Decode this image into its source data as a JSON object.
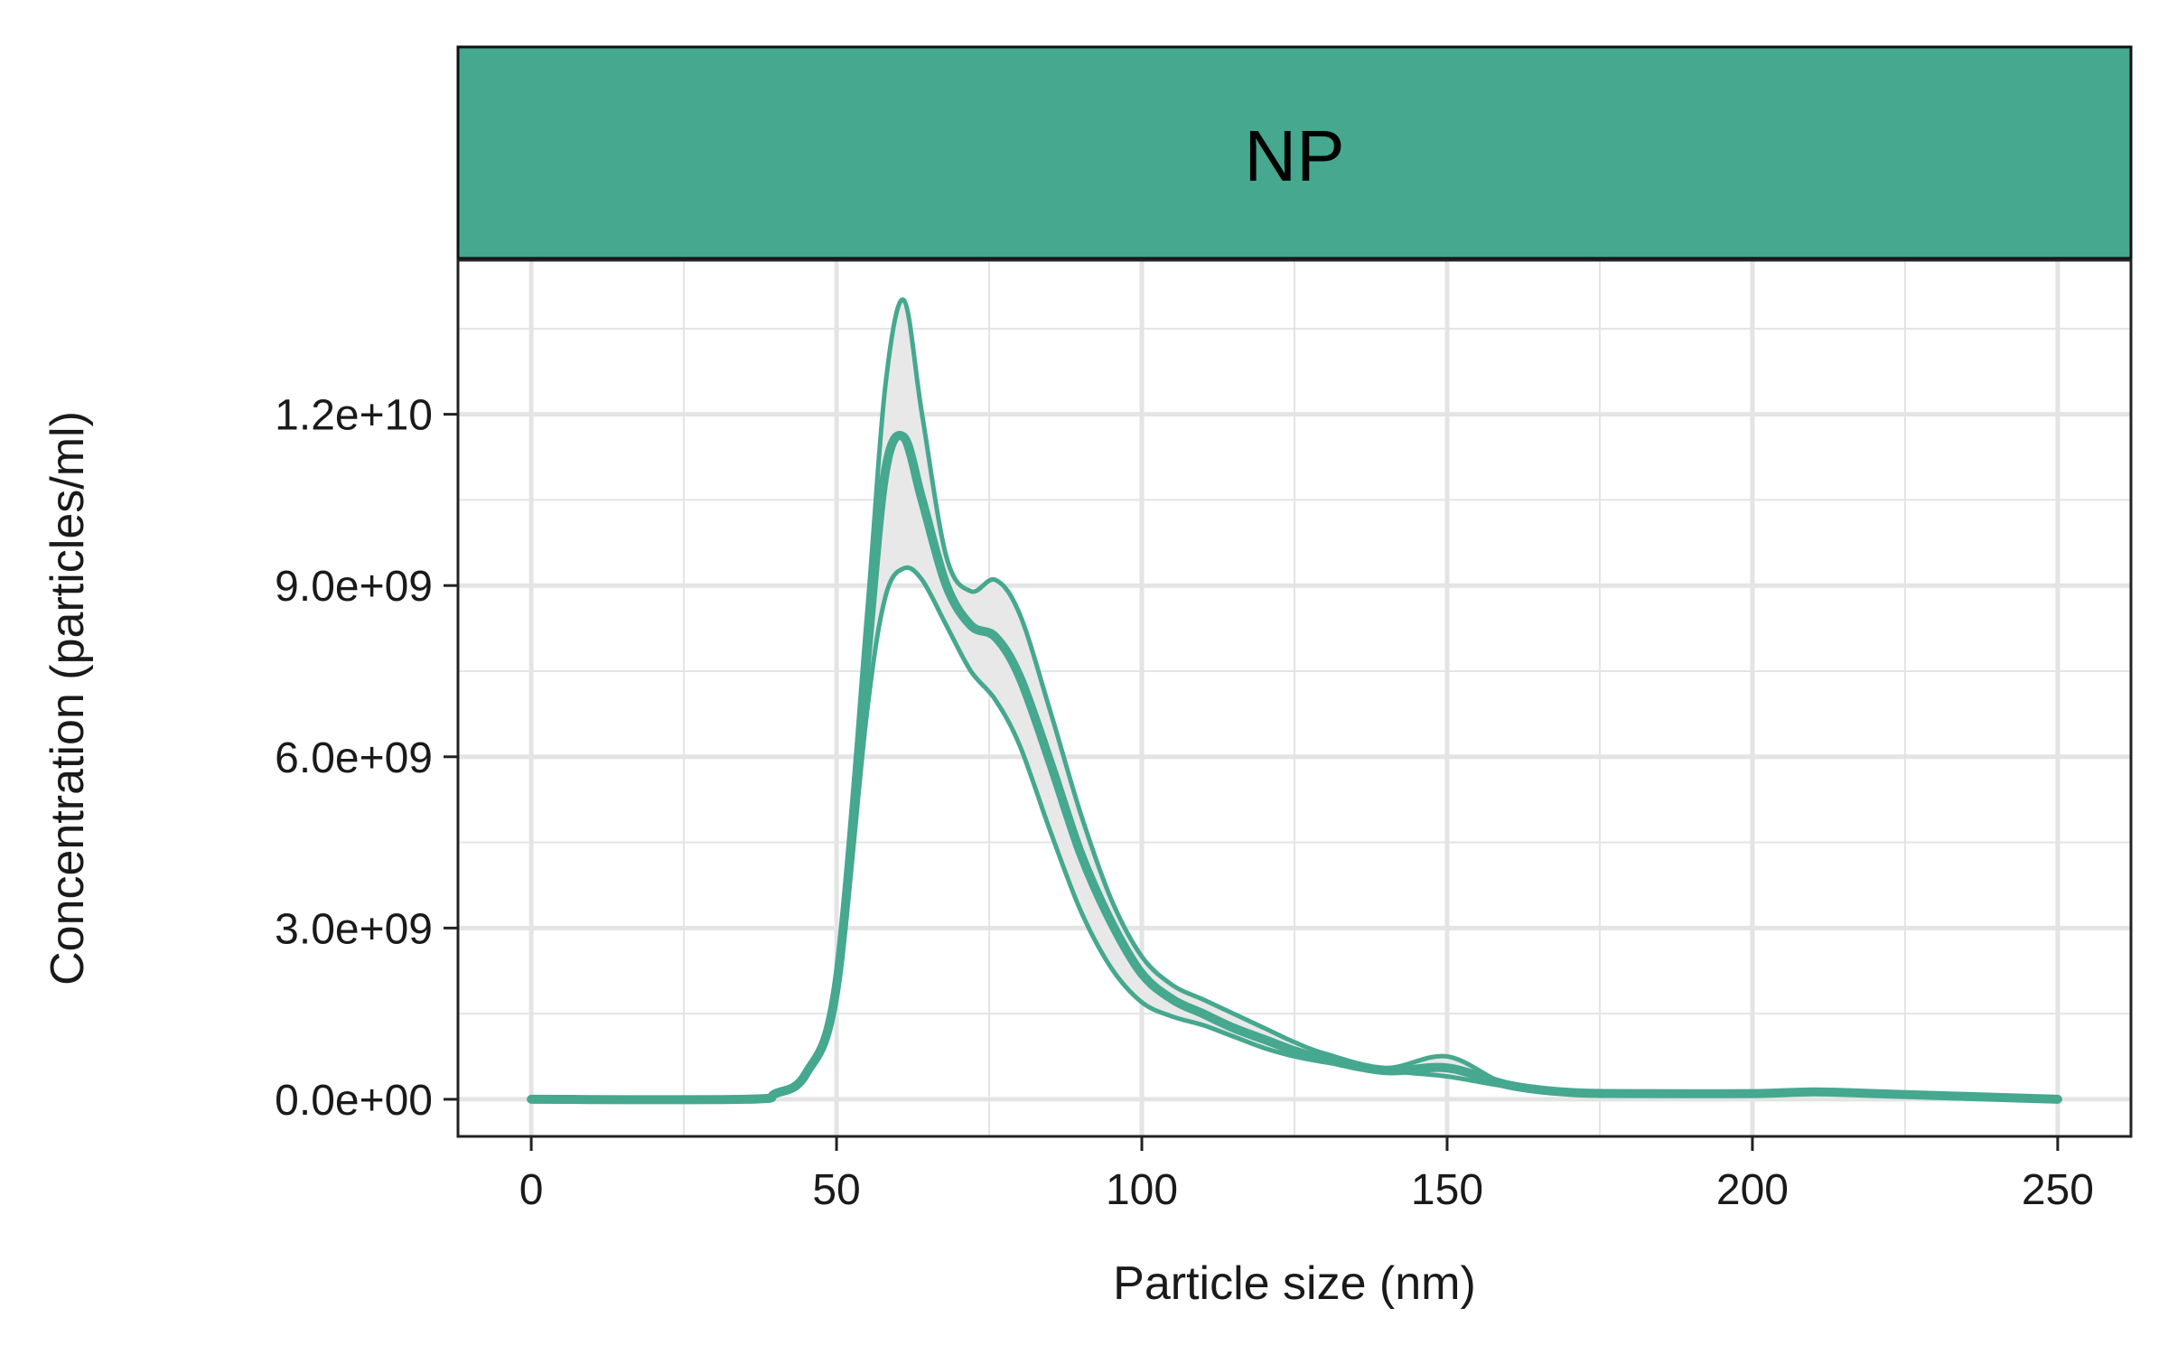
{
  "chart_data": {
    "type": "line",
    "facet_label": "NP",
    "xlabel": "Particle size (nm)",
    "ylabel": "Concentration (particles/ml)",
    "xlim": [
      -12,
      262
    ],
    "ylim": [
      -650000000.0,
      14700000000.0
    ],
    "x_ticks": [
      0,
      50,
      100,
      150,
      200,
      250
    ],
    "x_tick_labels": [
      "0",
      "50",
      "100",
      "150",
      "200",
      "250"
    ],
    "y_ticks": [
      0,
      3000000000,
      6000000000,
      9000000000,
      12000000000
    ],
    "y_tick_labels": [
      "0.0e+00",
      "3.0e+09",
      "6.0e+09",
      "9.0e+09",
      "1.2e+10"
    ],
    "grid": true,
    "colors": {
      "line": "#45a88f",
      "ribbon": "#e8e8e8",
      "strip": "#45a88f",
      "grid": "#e4e4e4",
      "border": "#222222"
    },
    "x": [
      0,
      35,
      40,
      45,
      50,
      55,
      58,
      61,
      64,
      68,
      72,
      76,
      80,
      85,
      90,
      95,
      100,
      105,
      110,
      115,
      120,
      125,
      130,
      140,
      150,
      160,
      170,
      180,
      200,
      210,
      220,
      250
    ],
    "series": [
      {
        "role": "upper",
        "values": [
          0,
          0,
          100000000.0,
          500000000.0,
          2200000000.0,
          8500000000.0,
          12500000000.0,
          14000000000.0,
          12000000000.0,
          9500000000.0,
          8900000000.0,
          9100000000.0,
          8500000000.0,
          6800000000.0,
          5000000000.0,
          3500000000.0,
          2500000000.0,
          2000000000.0,
          1750000000.0,
          1500000000.0,
          1250000000.0,
          1000000000.0,
          800000000.0,
          550000000.0,
          750000000.0,
          250000000.0,
          120000000.0,
          100000000.0,
          100000000.0,
          150000000.0,
          100000000.0,
          0
        ]
      },
      {
        "role": "mean",
        "values": [
          0,
          0,
          100000000.0,
          450000000.0,
          2000000000.0,
          7800000000.0,
          11000000000.0,
          11600000000.0,
          10500000000.0,
          9000000000.0,
          8300000000.0,
          8100000000.0,
          7400000000.0,
          5900000000.0,
          4300000000.0,
          3100000000.0,
          2200000000.0,
          1750000000.0,
          1500000000.0,
          1250000000.0,
          1050000000.0,
          850000000.0,
          700000000.0,
          500000000.0,
          550000000.0,
          250000000.0,
          120000000.0,
          100000000.0,
          100000000.0,
          130000000.0,
          100000000.0,
          0
        ]
      },
      {
        "role": "lower",
        "values": [
          0,
          0,
          80000000.0,
          400000000.0,
          1800000000.0,
          6800000000.0,
          8800000000.0,
          9300000000.0,
          9100000000.0,
          8300000000.0,
          7500000000.0,
          7000000000.0,
          6200000000.0,
          4700000000.0,
          3300000000.0,
          2300000000.0,
          1700000000.0,
          1450000000.0,
          1300000000.0,
          1100000000.0,
          900000000.0,
          750000000.0,
          650000000.0,
          500000000.0,
          400000000.0,
          220000000.0,
          120000000.0,
          100000000.0,
          100000000.0,
          120000000.0,
          100000000.0,
          0
        ]
      }
    ]
  }
}
